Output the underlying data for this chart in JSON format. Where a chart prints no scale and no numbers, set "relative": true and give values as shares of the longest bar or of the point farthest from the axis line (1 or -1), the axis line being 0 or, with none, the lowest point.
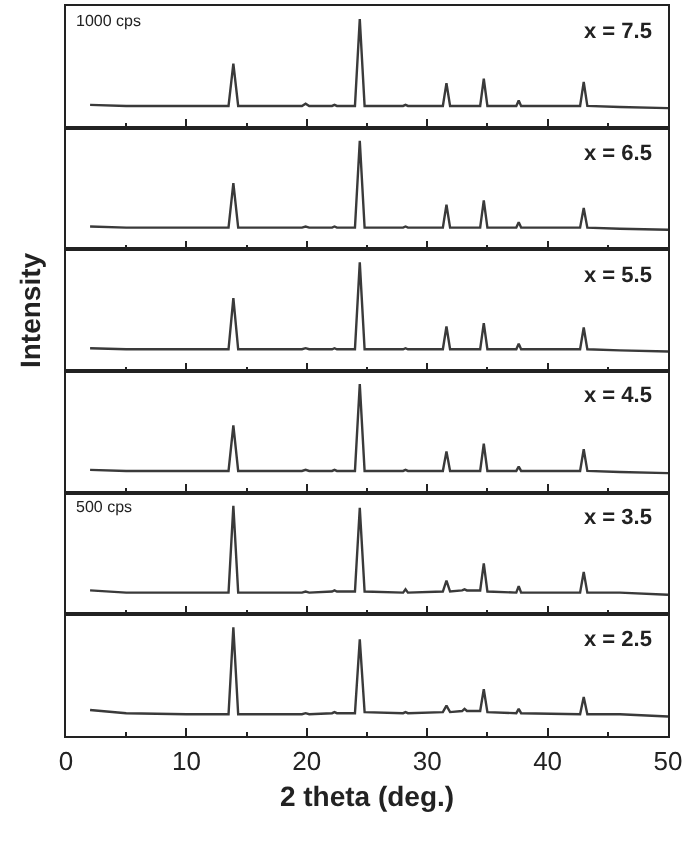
{
  "chart_data": [
    {
      "type": "line",
      "relative": true,
      "xlim": [
        0,
        50
      ],
      "xticks": [
        0,
        10,
        20,
        30,
        40,
        50
      ],
      "tick_labels": false,
      "annotations": [
        "x = 7.5",
        "1000 cps"
      ],
      "x": [
        2,
        5,
        10,
        13.5,
        13.9,
        14.3,
        19.6,
        19.9,
        20.2,
        22.1,
        22.3,
        22.5,
        24.0,
        24.4,
        24.8,
        28.0,
        28.2,
        28.4,
        31.3,
        31.6,
        31.9,
        32.9,
        33.1,
        33.3,
        34.4,
        34.7,
        35.0,
        37.4,
        37.6,
        37.8,
        42.7,
        43.0,
        43.3,
        46,
        50
      ],
      "series": [
        {
          "color": "#3a3a3a",
          "values": [
            0.21,
            0.2,
            0.2,
            0.2,
            0.59,
            0.2,
            0.2,
            0.22,
            0.2,
            0.2,
            0.21,
            0.2,
            0.2,
            1,
            0.2,
            0.2,
            0.21,
            0.2,
            0.2,
            0.41,
            0.2,
            0.2,
            0.2,
            0.2,
            0.2,
            0.45,
            0.2,
            0.2,
            0.25,
            0.2,
            0.2,
            0.42,
            0.2,
            0.19,
            0.18
          ]
        }
      ]
    },
    {
      "type": "line",
      "relative": true,
      "xlim": [
        0,
        50
      ],
      "xticks": [
        0,
        10,
        20,
        30,
        40,
        50
      ],
      "tick_labels": false,
      "annotations": [
        "x = 6.5"
      ],
      "x": [
        2,
        5,
        10,
        13.5,
        13.9,
        14.3,
        19.6,
        19.9,
        20.2,
        22.1,
        22.3,
        22.5,
        24.0,
        24.4,
        24.8,
        28.0,
        28.2,
        28.4,
        31.3,
        31.6,
        31.9,
        32.9,
        33.1,
        33.3,
        34.4,
        34.7,
        35.0,
        37.4,
        37.6,
        37.8,
        42.7,
        43.0,
        43.3,
        46,
        50
      ],
      "series": [
        {
          "color": "#3a3a3a",
          "values": [
            0.21,
            0.2,
            0.2,
            0.2,
            0.61,
            0.2,
            0.2,
            0.21,
            0.2,
            0.2,
            0.21,
            0.2,
            0.2,
            1,
            0.2,
            0.2,
            0.21,
            0.2,
            0.2,
            0.41,
            0.2,
            0.2,
            0.2,
            0.2,
            0.2,
            0.45,
            0.2,
            0.2,
            0.25,
            0.2,
            0.2,
            0.38,
            0.2,
            0.19,
            0.18
          ]
        }
      ]
    },
    {
      "type": "line",
      "relative": true,
      "xlim": [
        0,
        50
      ],
      "xticks": [
        0,
        10,
        20,
        30,
        40,
        50
      ],
      "tick_labels": false,
      "ylabel": "Intensity",
      "annotations": [
        "x = 5.5"
      ],
      "x": [
        2,
        5,
        10,
        13.5,
        13.9,
        14.3,
        19.6,
        19.9,
        20.2,
        22.1,
        22.3,
        22.5,
        24.0,
        24.4,
        24.8,
        28.0,
        28.2,
        28.4,
        31.3,
        31.6,
        31.9,
        32.9,
        33.1,
        33.3,
        34.4,
        34.7,
        35.0,
        37.4,
        37.6,
        37.8,
        42.7,
        43.0,
        43.3,
        46,
        50
      ],
      "series": [
        {
          "color": "#3a3a3a",
          "values": [
            0.21,
            0.2,
            0.2,
            0.2,
            0.67,
            0.2,
            0.2,
            0.21,
            0.2,
            0.2,
            0.21,
            0.2,
            0.2,
            1,
            0.2,
            0.2,
            0.21,
            0.2,
            0.2,
            0.41,
            0.2,
            0.2,
            0.2,
            0.2,
            0.2,
            0.44,
            0.2,
            0.2,
            0.25,
            0.2,
            0.2,
            0.4,
            0.2,
            0.19,
            0.18
          ]
        }
      ]
    },
    {
      "type": "line",
      "relative": true,
      "xlim": [
        0,
        50
      ],
      "xticks": [
        0,
        10,
        20,
        30,
        40,
        50
      ],
      "tick_labels": false,
      "annotations": [
        "x = 4.5"
      ],
      "x": [
        2,
        5,
        10,
        13.5,
        13.9,
        14.3,
        19.6,
        19.9,
        20.2,
        22.1,
        22.3,
        22.5,
        24.0,
        24.4,
        24.8,
        28.0,
        28.2,
        28.4,
        31.3,
        31.6,
        31.9,
        32.9,
        33.1,
        33.3,
        34.4,
        34.7,
        35.0,
        37.4,
        37.6,
        37.8,
        42.7,
        43.0,
        43.3,
        46,
        50
      ],
      "series": [
        {
          "color": "#3a3a3a",
          "values": [
            0.21,
            0.2,
            0.2,
            0.2,
            0.62,
            0.2,
            0.2,
            0.21,
            0.2,
            0.2,
            0.21,
            0.2,
            0.2,
            1,
            0.2,
            0.2,
            0.21,
            0.2,
            0.2,
            0.38,
            0.2,
            0.2,
            0.2,
            0.2,
            0.2,
            0.45,
            0.2,
            0.2,
            0.24,
            0.2,
            0.2,
            0.4,
            0.2,
            0.19,
            0.18
          ]
        }
      ]
    },
    {
      "type": "line",
      "relative": true,
      "xlim": [
        0,
        50
      ],
      "xticks": [
        0,
        10,
        20,
        30,
        40,
        50
      ],
      "tick_labels": false,
      "annotations": [
        "x = 3.5",
        "500 cps"
      ],
      "x": [
        2,
        5,
        10,
        13.5,
        13.9,
        14.3,
        19.6,
        19.9,
        20.2,
        22.1,
        22.3,
        22.5,
        24.0,
        24.4,
        24.8,
        28.0,
        28.2,
        28.4,
        31.3,
        31.6,
        31.9,
        32.9,
        33.1,
        33.3,
        34.4,
        34.7,
        35.0,
        37.4,
        37.6,
        37.8,
        42.7,
        43.0,
        43.3,
        46,
        50
      ],
      "series": [
        {
          "color": "#3a3a3a",
          "values": [
            0.22,
            0.2,
            0.2,
            0.2,
            1,
            0.2,
            0.2,
            0.21,
            0.2,
            0.21,
            0.22,
            0.21,
            0.21,
            0.98,
            0.21,
            0.2,
            0.23,
            0.2,
            0.21,
            0.31,
            0.21,
            0.22,
            0.23,
            0.22,
            0.22,
            0.47,
            0.21,
            0.2,
            0.26,
            0.2,
            0.2,
            0.39,
            0.2,
            0.2,
            0.18
          ]
        }
      ]
    },
    {
      "type": "line",
      "relative": true,
      "xlabel": "2 theta (deg.)",
      "xlim": [
        0,
        50
      ],
      "xticks": [
        0,
        10,
        20,
        30,
        40,
        50
      ],
      "tick_labels": "x",
      "annotations": [
        "x = 2.5"
      ],
      "x": [
        2,
        5,
        10,
        13.5,
        13.9,
        14.3,
        19.6,
        19.9,
        20.2,
        22.1,
        22.3,
        22.5,
        24.0,
        24.4,
        24.8,
        28.0,
        28.2,
        28.4,
        31.3,
        31.6,
        31.9,
        32.9,
        33.1,
        33.3,
        34.4,
        34.7,
        35.0,
        37.4,
        37.6,
        37.8,
        42.7,
        43.0,
        43.3,
        46,
        50
      ],
      "series": [
        {
          "color": "#3a3a3a",
          "values": [
            0.24,
            0.21,
            0.2,
            0.2,
            1,
            0.2,
            0.2,
            0.21,
            0.2,
            0.21,
            0.22,
            0.21,
            0.21,
            0.89,
            0.22,
            0.21,
            0.22,
            0.21,
            0.22,
            0.28,
            0.22,
            0.23,
            0.25,
            0.23,
            0.23,
            0.43,
            0.22,
            0.21,
            0.25,
            0.21,
            0.2,
            0.36,
            0.2,
            0.2,
            0.18
          ]
        }
      ]
    }
  ]
}
